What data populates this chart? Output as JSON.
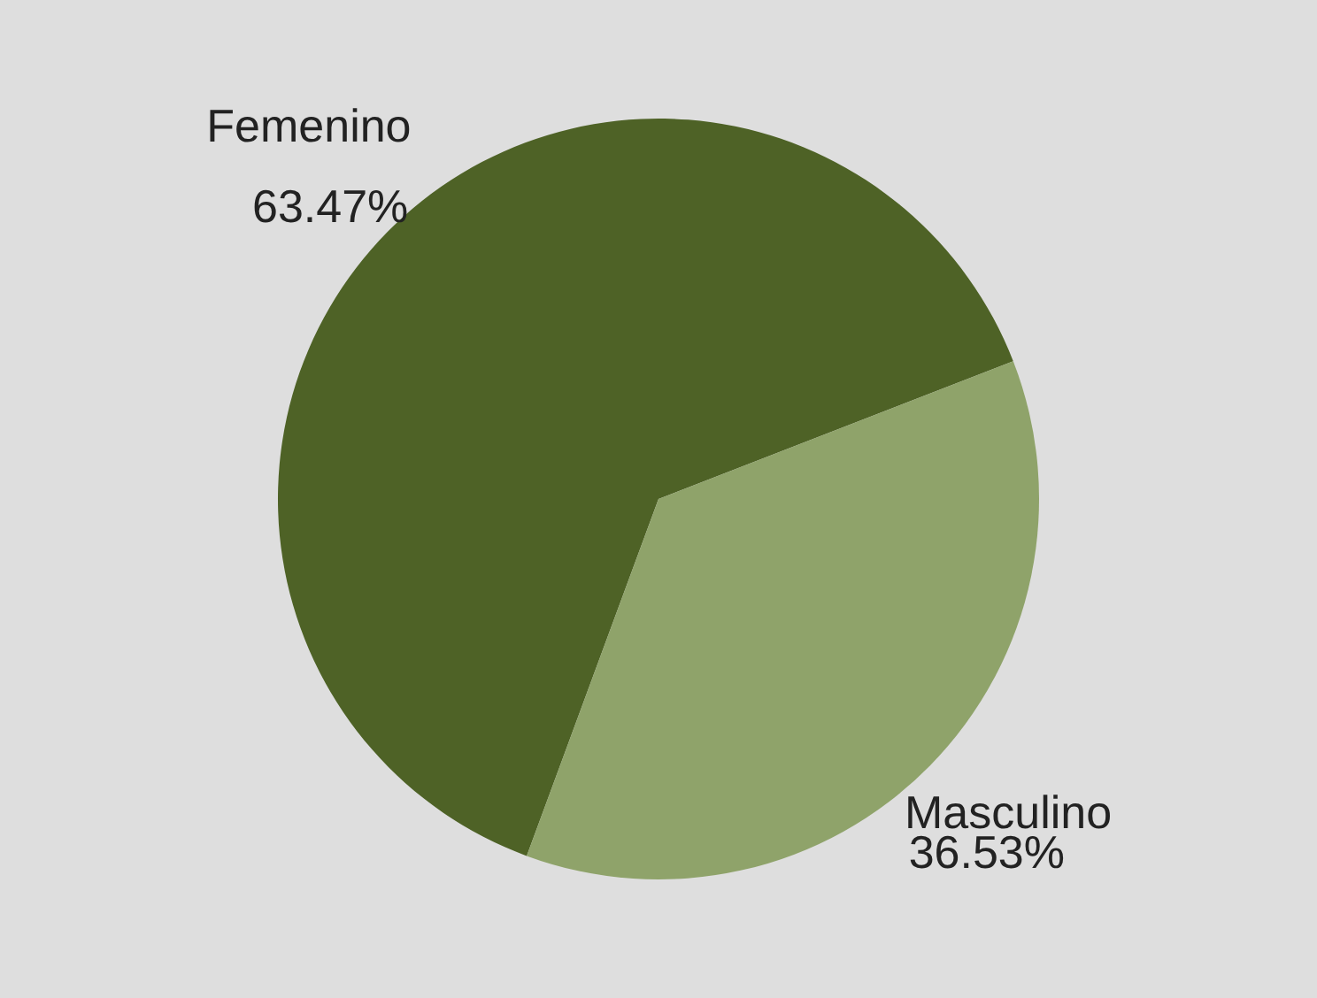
{
  "chart_data": {
    "type": "pie",
    "categories": [
      "Femenino",
      "Masculino"
    ],
    "values": [
      63.47,
      36.53
    ],
    "value_labels": [
      "63.47%",
      "36.53%"
    ],
    "colors": [
      "#4e6226",
      "#8fa36a"
    ],
    "legend": false
  }
}
